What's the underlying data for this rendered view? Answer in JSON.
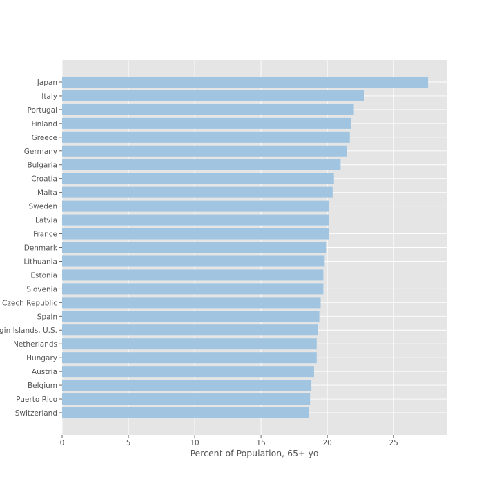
{
  "chart_data": {
    "type": "bar",
    "orientation": "horizontal",
    "title": "",
    "xlabel": "Percent of Population, 65+ yo",
    "ylabel": "",
    "xlim": [
      0,
      29
    ],
    "xticks": [
      0,
      5,
      10,
      15,
      20,
      25
    ],
    "grid": true,
    "bar_color": "#a1c5e0",
    "plot_background": "#e5e5e5",
    "grid_color": "#ffffff",
    "categories": [
      "Japan",
      "Italy",
      "Portugal",
      "Finland",
      "Greece",
      "Germany",
      "Bulgaria",
      "Croatia",
      "Malta",
      "Sweden",
      "Latvia",
      "France",
      "Denmark",
      "Lithuania",
      "Estonia",
      "Slovenia",
      "Czech Republic",
      "Spain",
      "Virgin Islands, U.S.",
      "Netherlands",
      "Hungary",
      "Austria",
      "Belgium",
      "Puerto Rico",
      "Switzerland"
    ],
    "values": [
      27.6,
      22.8,
      22.0,
      21.8,
      21.7,
      21.5,
      21.0,
      20.5,
      20.4,
      20.1,
      20.1,
      20.1,
      19.9,
      19.8,
      19.7,
      19.7,
      19.5,
      19.4,
      19.3,
      19.2,
      19.2,
      19.0,
      18.8,
      18.7,
      18.6
    ]
  }
}
